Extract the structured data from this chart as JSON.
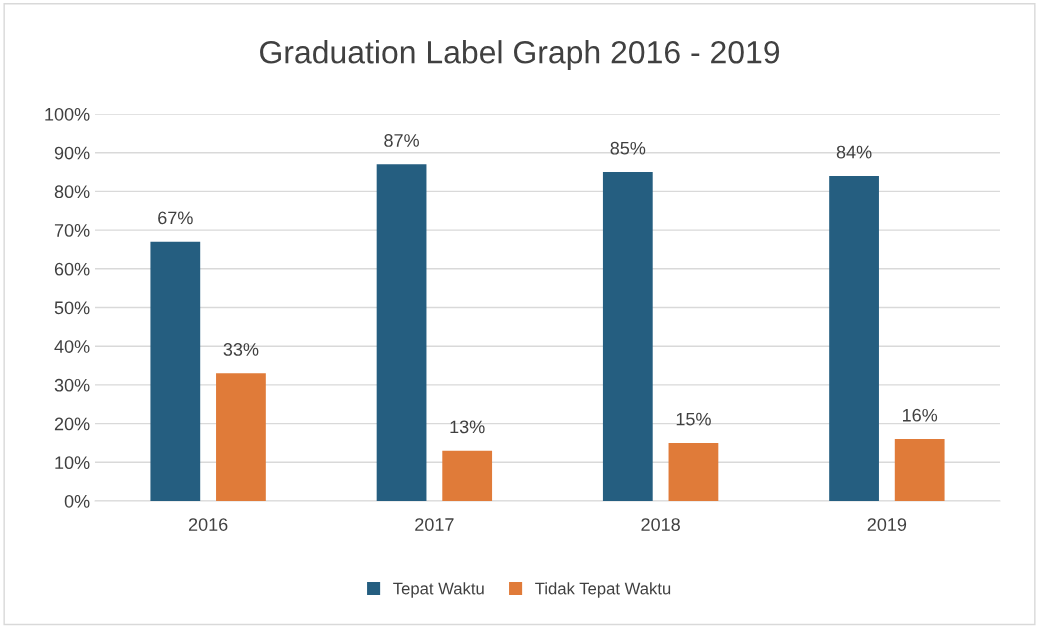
{
  "chart_data": {
    "type": "bar",
    "title": "Graduation Label Graph 2016 - 2019",
    "categories": [
      "2016",
      "2017",
      "2018",
      "2019"
    ],
    "series": [
      {
        "name": "Tepat Waktu",
        "color": "#255e80",
        "values": [
          67,
          87,
          85,
          84
        ],
        "value_labels": [
          "67%",
          "87%",
          "85%",
          "84%"
        ]
      },
      {
        "name": "Tidak Tepat Waktu",
        "color": "#e07b39",
        "values": [
          33,
          13,
          15,
          16
        ],
        "value_labels": [
          "33%",
          "13%",
          "15%",
          "16%"
        ]
      }
    ],
    "ylim": [
      0,
      100
    ],
    "yticks": [
      {
        "value": 0,
        "label": "0%"
      },
      {
        "value": 10,
        "label": "10%"
      },
      {
        "value": 20,
        "label": "20%"
      },
      {
        "value": 30,
        "label": "30%"
      },
      {
        "value": 40,
        "label": "40%"
      },
      {
        "value": 50,
        "label": "50%"
      },
      {
        "value": 60,
        "label": "60%"
      },
      {
        "value": 70,
        "label": "70%"
      },
      {
        "value": 80,
        "label": "80%"
      },
      {
        "value": 90,
        "label": "90%"
      },
      {
        "value": 100,
        "label": "100%"
      }
    ],
    "grid": "y",
    "legend": "bottom"
  }
}
